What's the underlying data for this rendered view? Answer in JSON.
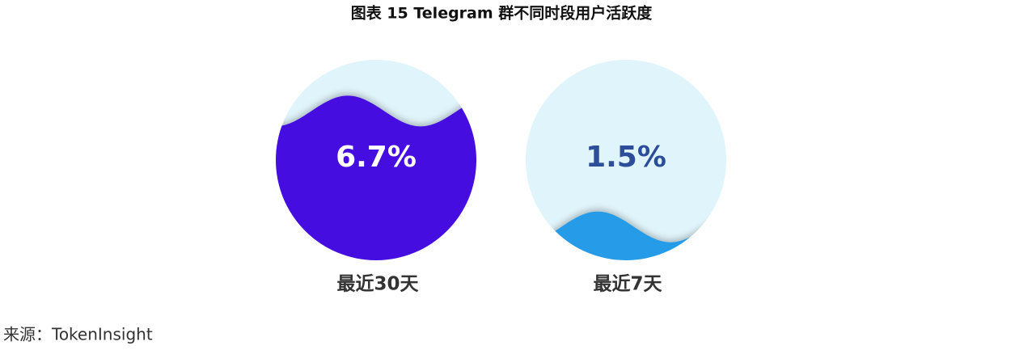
{
  "chart_data": {
    "type": "liquidfill",
    "title": "图表 15 Telegram 群不同时段用户活跃度",
    "categories": [
      "最近30天",
      "最近7天"
    ],
    "values": [
      6.7,
      1.5
    ],
    "value_labels": [
      "6.7%",
      "1.5%"
    ],
    "colors": [
      "#4510e0",
      "#259be8"
    ],
    "label_colors": [
      "#ffffff",
      "#2b4d9a"
    ],
    "ylim": [
      0,
      9
    ],
    "source": "来源：TokenInsight"
  }
}
